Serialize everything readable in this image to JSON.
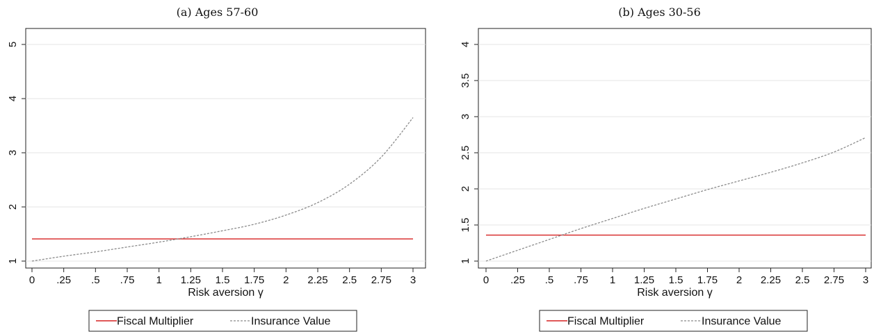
{
  "chart_data": [
    {
      "type": "line",
      "panel_title": "(a) Ages 57-60",
      "xlabel": "Risk aversion γ",
      "ylabel": "",
      "xlim": [
        0,
        3
      ],
      "ylim": [
        1,
        5
      ],
      "x_ticks": [
        0,
        0.25,
        0.5,
        0.75,
        1,
        1.25,
        1.5,
        1.75,
        2,
        2.25,
        2.5,
        2.75,
        3
      ],
      "x_tick_labels": [
        "0",
        ".25",
        ".5",
        ".75",
        "1",
        "1.25",
        "1.5",
        "1.75",
        "2",
        "2.25",
        "2.5",
        "2.75",
        "3"
      ],
      "y_ticks": [
        1,
        2,
        3,
        4,
        5
      ],
      "y_tick_labels": [
        "1",
        "2",
        "3",
        "4",
        "5"
      ],
      "grid": "horizontal",
      "legend_placement": "bottom",
      "series": [
        {
          "name": "Fiscal Multiplier",
          "color": "#d62020",
          "style": "solid",
          "x": [
            0,
            3
          ],
          "y": [
            1.41,
            1.41
          ]
        },
        {
          "name": "Insurance Value",
          "color": "#8a8a8a",
          "style": "dashed",
          "x": [
            0,
            0.25,
            0.5,
            0.75,
            1,
            1.25,
            1.5,
            1.75,
            2,
            2.25,
            2.5,
            2.75,
            3
          ],
          "y": [
            1.0,
            1.09,
            1.17,
            1.26,
            1.35,
            1.45,
            1.56,
            1.68,
            1.85,
            2.08,
            2.42,
            2.92,
            3.65
          ]
        }
      ]
    },
    {
      "type": "line",
      "panel_title": "(b) Ages 30-56",
      "xlabel": "Risk aversion γ",
      "ylabel": "",
      "xlim": [
        0,
        3
      ],
      "ylim": [
        1,
        4
      ],
      "x_ticks": [
        0,
        0.25,
        0.5,
        0.75,
        1,
        1.25,
        1.5,
        1.75,
        2,
        2.25,
        2.5,
        2.75,
        3
      ],
      "x_tick_labels": [
        "0",
        ".25",
        ".5",
        ".75",
        "1",
        "1.25",
        "1.5",
        "1.75",
        "2",
        "2.25",
        "2.5",
        "2.75",
        "3"
      ],
      "y_ticks": [
        1,
        1.5,
        2,
        2.5,
        3,
        3.5,
        4
      ],
      "y_tick_labels": [
        "1",
        "1.5",
        "2",
        "2.5",
        "3",
        "3.5",
        "4"
      ],
      "grid": "horizontal",
      "legend_placement": "bottom",
      "series": [
        {
          "name": "Fiscal Multiplier",
          "color": "#d62020",
          "style": "solid",
          "x": [
            0,
            3
          ],
          "y": [
            1.36,
            1.36
          ]
        },
        {
          "name": "Insurance Value",
          "color": "#8a8a8a",
          "style": "dashed",
          "x": [
            0,
            0.25,
            0.5,
            0.75,
            1,
            1.25,
            1.5,
            1.75,
            2,
            2.25,
            2.5,
            2.75,
            3
          ],
          "y": [
            1.0,
            1.15,
            1.3,
            1.45,
            1.59,
            1.73,
            1.86,
            1.99,
            2.11,
            2.23,
            2.36,
            2.51,
            2.71
          ]
        }
      ]
    }
  ]
}
